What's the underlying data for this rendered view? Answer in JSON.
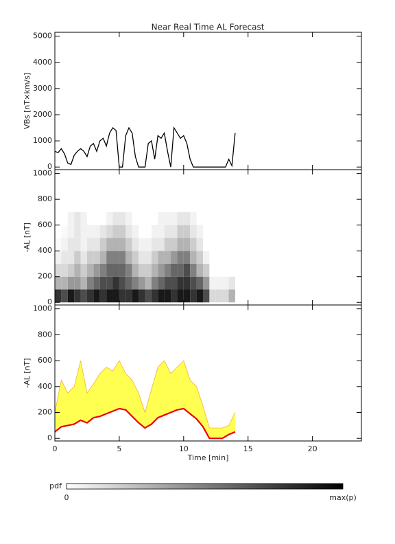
{
  "chart_data": [
    {
      "type": "line",
      "title": "Near Real Time AL Forecast",
      "ylabel": "VBs [nT×km/s]",
      "xlim": [
        0,
        23.8
      ],
      "xticks": [
        0,
        5,
        10,
        15,
        20
      ],
      "ylim": [
        -100,
        5150
      ],
      "yticks": [
        0,
        1000,
        2000,
        3000,
        4000,
        5000
      ],
      "x": [
        0,
        0.25,
        0.5,
        0.75,
        1,
        1.25,
        1.5,
        1.75,
        2,
        2.25,
        2.5,
        2.75,
        3,
        3.25,
        3.5,
        3.75,
        4,
        4.25,
        4.5,
        4.75,
        5,
        5.25,
        5.5,
        5.75,
        6,
        6.25,
        6.5,
        6.75,
        7,
        7.25,
        7.5,
        7.75,
        8,
        8.25,
        8.5,
        8.75,
        9,
        9.25,
        9.5,
        9.75,
        10,
        10.25,
        10.5,
        10.75,
        11,
        11.25,
        11.5,
        11.75,
        12,
        12.25,
        12.5,
        12.75,
        13,
        13.25,
        13.5,
        13.75,
        14
      ],
      "series": [
        {
          "color": "#000000",
          "values": [
            600,
            550,
            700,
            500,
            150,
            100,
            450,
            600,
            700,
            600,
            400,
            800,
            900,
            600,
            1000,
            1100,
            800,
            1300,
            1500,
            1400,
            0,
            0,
            1200,
            1500,
            1300,
            400,
            0,
            0,
            0,
            900,
            1000,
            300,
            1200,
            1100,
            1300,
            600,
            0,
            1500,
            1300,
            1100,
            1200,
            900,
            300,
            0,
            0,
            0,
            0,
            0,
            0,
            0,
            0,
            0,
            0,
            0,
            300,
            50,
            1300
          ]
        }
      ]
    },
    {
      "type": "heatmap",
      "ylabel": "-AL [nT]",
      "xlim": [
        0,
        23.8
      ],
      "xticks": [
        0,
        5,
        10,
        15,
        20
      ],
      "ylim": [
        -20,
        1030
      ],
      "yticks": [
        0,
        200,
        400,
        600,
        800,
        1000
      ],
      "xbins": [
        0,
        0.5,
        1,
        1.5,
        2,
        2.5,
        3,
        3.5,
        4,
        4.5,
        5,
        5.5,
        6,
        6.5,
        7,
        7.5,
        8,
        8.5,
        9,
        9.5,
        10,
        10.5,
        11,
        11.5,
        12,
        12.5,
        13,
        13.5,
        14
      ],
      "ybins": [
        0,
        100,
        200,
        300,
        400,
        500,
        600,
        700
      ],
      "z": [
        [
          0.8,
          0.7,
          0.9,
          0.8,
          0.7,
          0.8,
          0.9,
          0.8,
          0.9,
          0.9,
          0.8,
          0.8,
          0.9,
          0.8,
          0.7,
          0.8,
          0.9,
          0.9,
          0.8,
          0.9,
          0.9,
          0.8,
          0.9,
          0.7,
          0.15,
          0.15,
          0.15,
          0.3
        ],
        [
          0.3,
          0.3,
          0.4,
          0.4,
          0.3,
          0.5,
          0.6,
          0.7,
          0.7,
          0.8,
          0.7,
          0.6,
          0.5,
          0.4,
          0.3,
          0.5,
          0.6,
          0.7,
          0.7,
          0.8,
          0.8,
          0.7,
          0.6,
          0.4,
          0.05,
          0.05,
          0.05,
          0.1
        ],
        [
          0.15,
          0.15,
          0.2,
          0.3,
          0.2,
          0.3,
          0.4,
          0.5,
          0.6,
          0.6,
          0.6,
          0.5,
          0.3,
          0.2,
          0.2,
          0.3,
          0.4,
          0.5,
          0.6,
          0.6,
          0.7,
          0.5,
          0.3,
          0.2,
          0,
          0,
          0,
          0
        ],
        [
          0.05,
          0.1,
          0.1,
          0.2,
          0.1,
          0.2,
          0.2,
          0.3,
          0.5,
          0.5,
          0.5,
          0.3,
          0.2,
          0.1,
          0.1,
          0.2,
          0.3,
          0.3,
          0.4,
          0.5,
          0.5,
          0.3,
          0.2,
          0.05,
          0,
          0,
          0,
          0
        ],
        [
          0.02,
          0.05,
          0.1,
          0.1,
          0.05,
          0.1,
          0.1,
          0.2,
          0.3,
          0.3,
          0.3,
          0.2,
          0.1,
          0.05,
          0.05,
          0.1,
          0.1,
          0.2,
          0.2,
          0.3,
          0.3,
          0.2,
          0.1,
          0,
          0,
          0,
          0,
          0
        ],
        [
          0,
          0.02,
          0.05,
          0.1,
          0.05,
          0.05,
          0.05,
          0.1,
          0.15,
          0.2,
          0.2,
          0.1,
          0.05,
          0,
          0,
          0.05,
          0.05,
          0.1,
          0.1,
          0.2,
          0.2,
          0.1,
          0.05,
          0,
          0,
          0,
          0,
          0
        ],
        [
          0,
          0,
          0.05,
          0.1,
          0.05,
          0,
          0,
          0,
          0.05,
          0.1,
          0.1,
          0.05,
          0,
          0,
          0,
          0,
          0.05,
          0.05,
          0.05,
          0.1,
          0.1,
          0.05,
          0,
          0,
          0,
          0,
          0,
          0
        ]
      ],
      "colorbar": {
        "label": "pdf",
        "min_label": "0",
        "max_label": "max(p)"
      }
    },
    {
      "type": "band",
      "ylabel": "-AL [nT]",
      "xlabel": "Time [min]",
      "xlim": [
        0,
        23.8
      ],
      "xticks": [
        0,
        5,
        10,
        15,
        20
      ],
      "ylim": [
        -20,
        1030
      ],
      "yticks": [
        0,
        200,
        400,
        600,
        800,
        1000
      ],
      "x": [
        0,
        0.5,
        1,
        1.5,
        2,
        2.5,
        3,
        3.5,
        4,
        4.5,
        5,
        5.5,
        6,
        6.5,
        7,
        7.5,
        8,
        8.5,
        9,
        9.5,
        10,
        10.5,
        11,
        11.5,
        12,
        12.5,
        13,
        13.5,
        14
      ],
      "series": [
        {
          "color": "#ee0000",
          "values": [
            50,
            90,
            100,
            110,
            140,
            120,
            160,
            170,
            190,
            210,
            230,
            220,
            170,
            120,
            80,
            110,
            160,
            180,
            200,
            220,
            230,
            190,
            150,
            90,
            0,
            0,
            0,
            30,
            50
          ]
        },
        {
          "color": "#ffff33",
          "edge": "#f0b040",
          "values": [
            200,
            450,
            350,
            400,
            600,
            350,
            420,
            500,
            550,
            520,
            600,
            500,
            450,
            350,
            200,
            380,
            550,
            600,
            500,
            550,
            600,
            450,
            400,
            250,
            80,
            80,
            80,
            100,
            200
          ]
        }
      ]
    }
  ]
}
